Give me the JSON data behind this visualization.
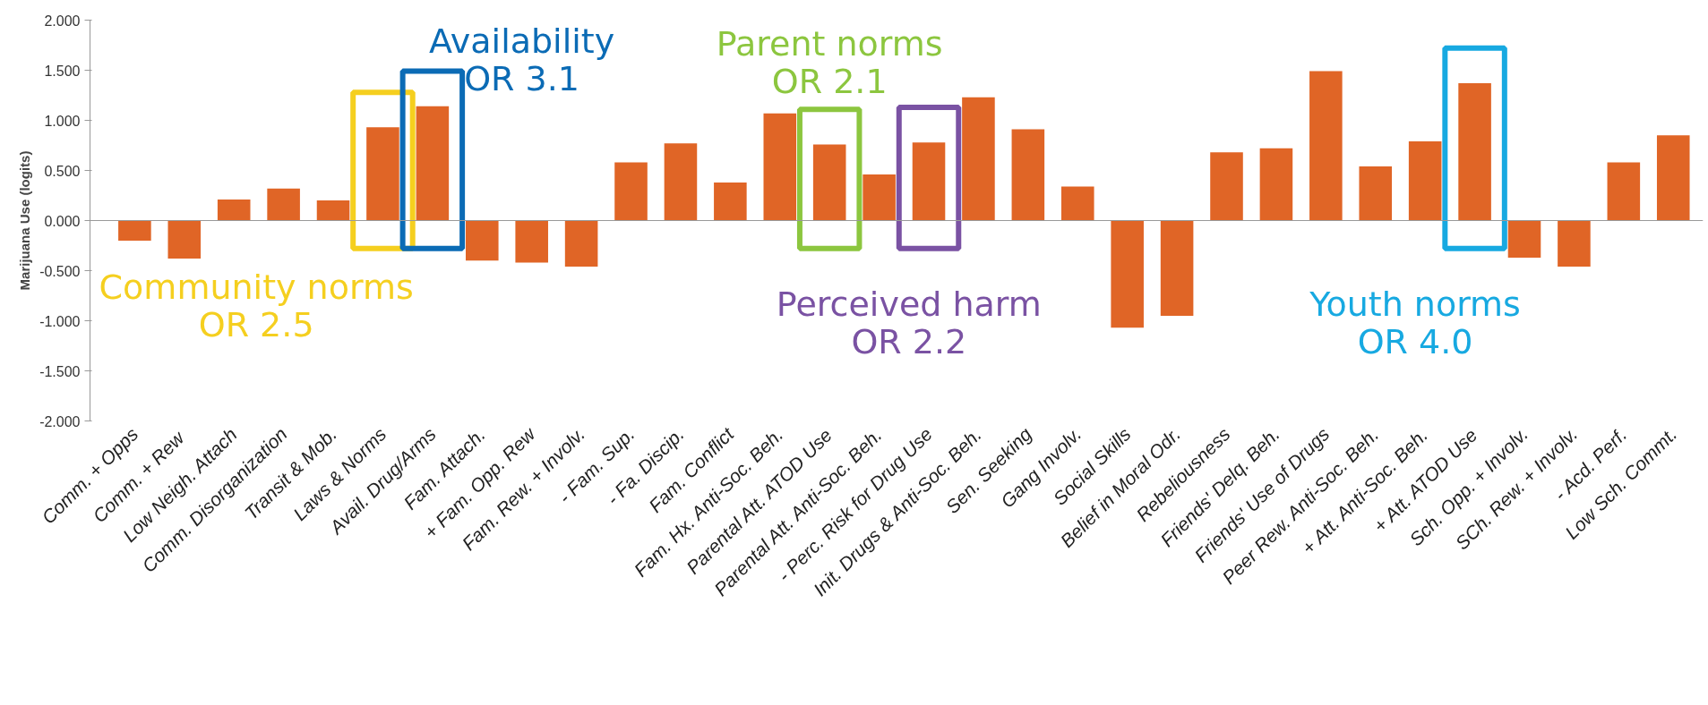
{
  "chart_data": {
    "type": "bar",
    "ylabel": "Marijuana Use (logits)",
    "categories": [
      "Comm. + Opps",
      "Comm.  + Rew",
      "Low Neigh. Attach",
      "Comm. Disorganization",
      "Transit & Mob.",
      "Laws & Norms",
      "Avail. Drug/Arms",
      "Fam. Attach.",
      "+ Fam. Opp. Rew",
      "Fam. Rew. + Involv.",
      "- Fam. Sup.",
      "- Fa. Discip.",
      "Fam. Conflict",
      "Fam. Hx. Anti-Soc. Beh.",
      "Parental Att. ATOD Use",
      "Parental Att. Anti-Soc. Beh.",
      "- Perc. Risk for Drug Use",
      "Init. Drugs & Anti-Soc. Beh.",
      "Sen. Seeking",
      "Gang Involv.",
      "Social Skills",
      "Belief in Moral Odr.",
      "Rebeliousness",
      "Friends' Delq. Beh.",
      "Friends' Use of Drugs",
      "Peer Rew. Anti-Soc. Beh.",
      "+ Att. Anti-Soc. Beh.",
      "+ Att. ATOD Use",
      "Sch. Opp. + Involv.",
      "SCh. Rew. + Involv.",
      "- Acd. Perf.",
      "Low Sch. Commt."
    ],
    "values": [
      -0.2,
      -0.38,
      0.21,
      0.32,
      0.2,
      0.93,
      1.14,
      -0.4,
      -0.42,
      -0.46,
      0.58,
      0.77,
      0.38,
      1.07,
      0.76,
      0.46,
      0.78,
      1.23,
      0.91,
      0.34,
      -1.07,
      -0.95,
      0.68,
      0.72,
      1.49,
      0.54,
      0.79,
      1.37,
      -0.37,
      -0.46,
      0.58,
      0.85
    ],
    "color": "#e06526",
    "ylim": [
      -2,
      2
    ],
    "yticks": [
      {
        "value": 2,
        "label": "2.000"
      },
      {
        "value": 1.5,
        "label": "1.500"
      },
      {
        "value": 1,
        "label": "1.000"
      },
      {
        "value": 0.5,
        "label": "0.500"
      },
      {
        "value": 0,
        "label": "0.000"
      },
      {
        "value": -0.5,
        "label": "-0.500"
      },
      {
        "value": -1,
        "label": "-1.000"
      },
      {
        "value": -1.5,
        "label": "-1.500"
      },
      {
        "value": -2,
        "label": "-2.000"
      }
    ],
    "annotations": [
      "Community norms\nOR 2.5",
      "Availability\nOR 3.1",
      "Parent norms\nOR 2.1",
      "Perceived harm\nOR 2.2",
      "Youth norms\nOR 4.0"
    ]
  }
}
